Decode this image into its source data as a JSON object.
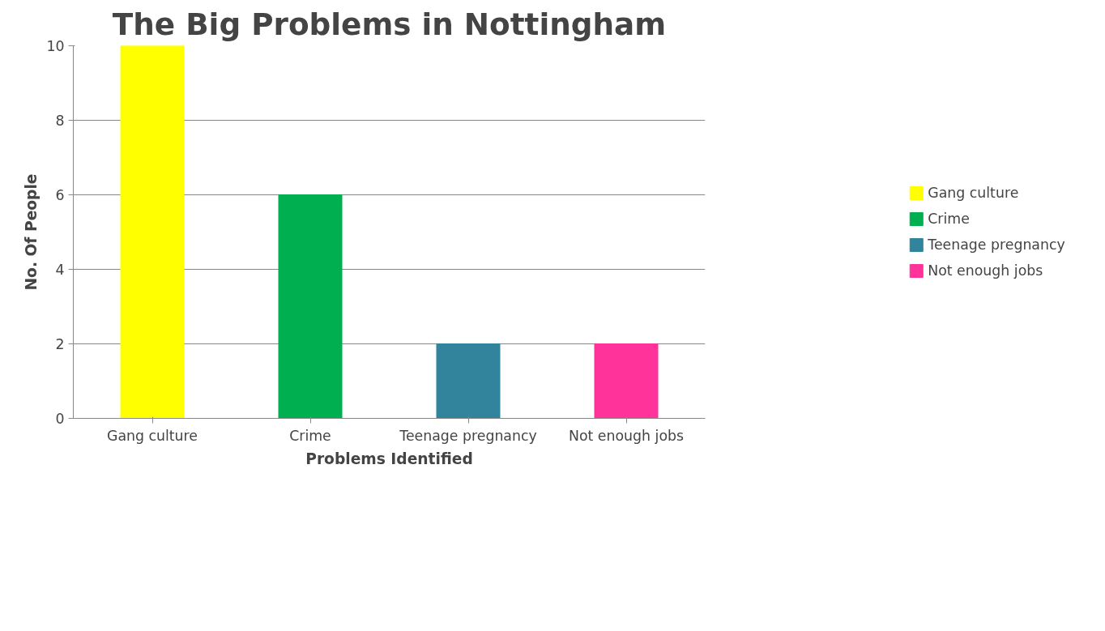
{
  "chart_data": {
    "type": "bar",
    "title": "The Big Problems in Nottingham",
    "xlabel": "Problems Identified",
    "ylabel": "No. Of People",
    "categories": [
      "Gang culture",
      "Crime",
      "Teenage pregnancy",
      "Not enough jobs"
    ],
    "series": [
      {
        "name": "Gang culture",
        "color": "#ffff00",
        "values": [
          10,
          null,
          null,
          null
        ]
      },
      {
        "name": "Crime",
        "color": "#00b050",
        "values": [
          null,
          6,
          null,
          null
        ]
      },
      {
        "name": "Teenage pregnancy",
        "color": "#31849b",
        "values": [
          null,
          null,
          2,
          null
        ]
      },
      {
        "name": "Not enough jobs",
        "color": "#ff3399",
        "values": [
          null,
          null,
          null,
          2
        ]
      }
    ],
    "ylim": [
      0,
      10
    ],
    "yticks": [
      0,
      2,
      4,
      6,
      8,
      10
    ],
    "grid": "y",
    "legend": "right"
  }
}
